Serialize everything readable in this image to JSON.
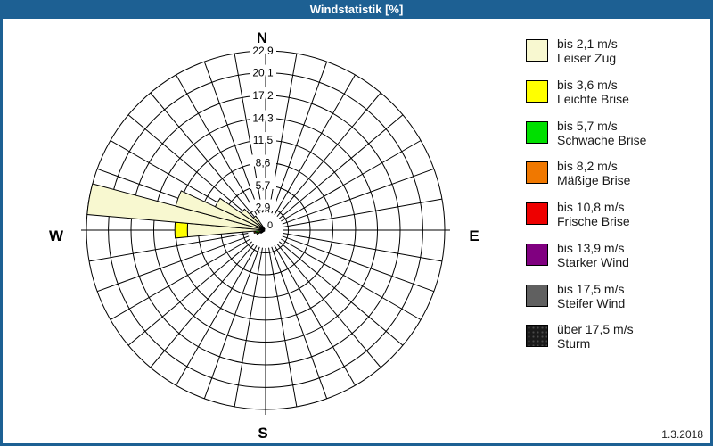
{
  "window": {
    "title": "Windstatistik [%]",
    "titlebar_color": "#1D6093",
    "date": "1.3.2018"
  },
  "chart_data": {
    "type": "windrose",
    "title": "Windstatistik [%]",
    "unit": "%",
    "axis_max": 22.9,
    "center_label": "0",
    "rings": [
      2.9,
      5.7,
      8.6,
      11.5,
      14.3,
      17.2,
      20.1,
      22.9
    ],
    "ring_labels": [
      "2,9",
      "5,7",
      "8,6",
      "11,5",
      "14,3",
      "17,2",
      "20,1",
      "22,9"
    ],
    "sector_count": 36,
    "sector_width_deg": 10,
    "compass": {
      "n": "N",
      "e": "E",
      "s": "S",
      "w": "W"
    },
    "grid_color": "#000000",
    "speed_classes": [
      {
        "speed": "bis 2,1 m/s",
        "name": "Leiser Zug",
        "color": "#F8F8D0"
      },
      {
        "speed": "bis 3,6 m/s",
        "name": "Leichte Brise",
        "color": "#FFFF00"
      },
      {
        "speed": "bis 5,7 m/s",
        "name": "Schwache Brise",
        "color": "#00E000"
      },
      {
        "speed": "bis 8,2 m/s",
        "name": "Mäßige Brise",
        "color": "#F07800"
      },
      {
        "speed": "bis 10,8 m/s",
        "name": "Frische Brise",
        "color": "#EE0000"
      },
      {
        "speed": "bis 13,9 m/s",
        "name": "Starker Wind",
        "color": "#800080"
      },
      {
        "speed": "bis 17,5 m/s",
        "name": "Steifer Wind",
        "color": "#606060"
      },
      {
        "speed": "über 17,5 m/s",
        "name": "Sturm",
        "color": "#1A1A1A"
      }
    ],
    "petals": [
      {
        "direction_deg": 240,
        "segments": [
          0.3,
          0.2,
          0.2
        ]
      },
      {
        "direction_deg": 250,
        "segments": [
          0.4,
          0.3,
          0.3,
          0.2
        ]
      },
      {
        "direction_deg": 260,
        "segments": [
          0.6,
          0.4,
          0.3,
          0.2
        ]
      },
      {
        "direction_deg": 270,
        "segments": [
          10.0,
          1.6
        ]
      },
      {
        "direction_deg": 280,
        "segments": [
          22.9
        ]
      },
      {
        "direction_deg": 290,
        "segments": [
          11.9
        ]
      },
      {
        "direction_deg": 300,
        "segments": [
          7.1
        ]
      },
      {
        "direction_deg": 310,
        "segments": [
          3.8
        ]
      },
      {
        "direction_deg": 320,
        "segments": [
          2.2
        ]
      }
    ]
  },
  "legend": {
    "rows": [
      {
        "speed": "bis 2,1 m/s",
        "name": "Leiser Zug"
      },
      {
        "speed": "bis 3,6 m/s",
        "name": "Leichte Brise"
      },
      {
        "speed": "bis 5,7 m/s",
        "name": "Schwache Brise"
      },
      {
        "speed": "bis 8,2 m/s",
        "name": "Mäßige Brise"
      },
      {
        "speed": "bis 10,8 m/s",
        "name": "Frische Brise"
      },
      {
        "speed": "bis 13,9 m/s",
        "name": "Starker Wind"
      },
      {
        "speed": "bis 17,5 m/s",
        "name": "Steifer Wind"
      },
      {
        "speed": "über 17,5 m/s",
        "name": "Sturm"
      }
    ]
  }
}
